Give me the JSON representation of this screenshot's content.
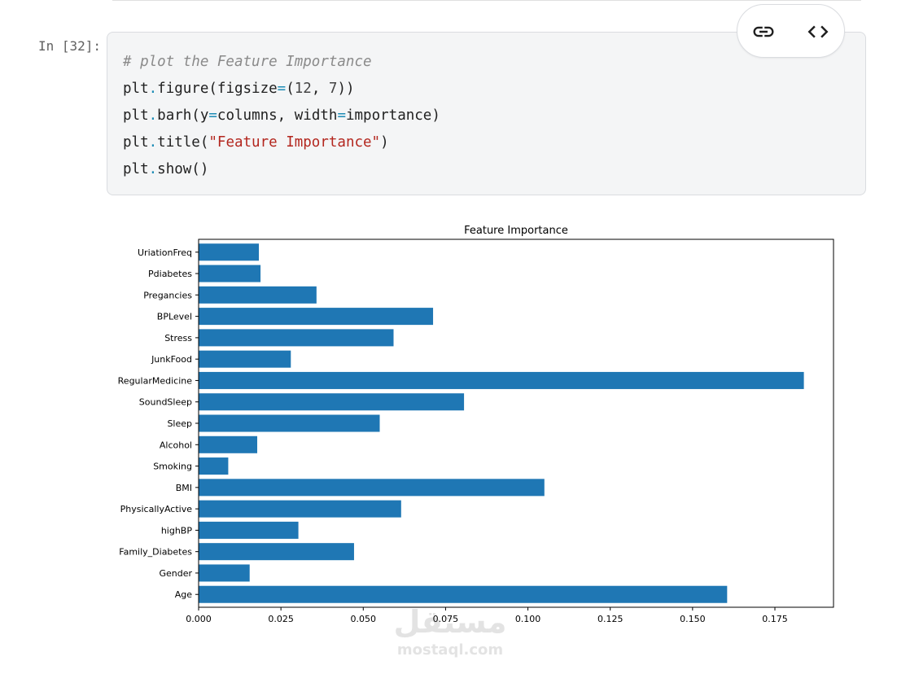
{
  "cell": {
    "prompt": "In [32]:",
    "lines": {
      "l1": {
        "comment": "# plot the Feature Importance"
      },
      "l2": {
        "a": "plt",
        "b": ".",
        "c": "figure(figsize",
        "d": "=",
        "e": "(",
        "f": "12",
        "g": ", ",
        "h": "7",
        "i": "))"
      },
      "l3": {
        "a": "plt",
        "b": ".",
        "c": "barh(y",
        "d": "=",
        "e": "columns, width",
        "f": "=",
        "g": "importance)"
      },
      "l4": {
        "a": "plt",
        "b": ".",
        "c": "title(",
        "d": "\"Feature Importance\"",
        "e": ")"
      },
      "l5": {
        "a": "plt",
        "b": ".",
        "c": "show()"
      }
    }
  },
  "toolbar": {
    "link_icon": "link-icon",
    "code_icon": "code-icon"
  },
  "watermark": {
    "arabic": "مستقل",
    "latin": "mostaql.com"
  },
  "colors": {
    "bar": "#1f77b4",
    "code_bg": "#f4f5f6",
    "string": "#b3261e",
    "operator": "#1b8bb5"
  },
  "chart_data": {
    "type": "bar",
    "orientation": "horizontal",
    "title": "Feature Importance",
    "xlabel": "",
    "ylabel": "",
    "categories": [
      "Age",
      "Gender",
      "Family_Diabetes",
      "highBP",
      "PhysicallyActive",
      "BMI",
      "Smoking",
      "Alcohol",
      "Sleep",
      "SoundSleep",
      "RegularMedicine",
      "JunkFood",
      "Stress",
      "BPLevel",
      "Pregancies",
      "Pdiabetes",
      "UriationFreq"
    ],
    "values": [
      0.1605,
      0.0155,
      0.0472,
      0.0303,
      0.0615,
      0.105,
      0.009,
      0.0178,
      0.055,
      0.0806,
      0.1838,
      0.028,
      0.0592,
      0.0712,
      0.0358,
      0.0188,
      0.0183
    ],
    "xlim": [
      0,
      0.1928
    ],
    "xticks": [
      "0.000",
      "0.025",
      "0.050",
      "0.075",
      "0.100",
      "0.125",
      "0.150",
      "0.175"
    ],
    "grid": false
  }
}
